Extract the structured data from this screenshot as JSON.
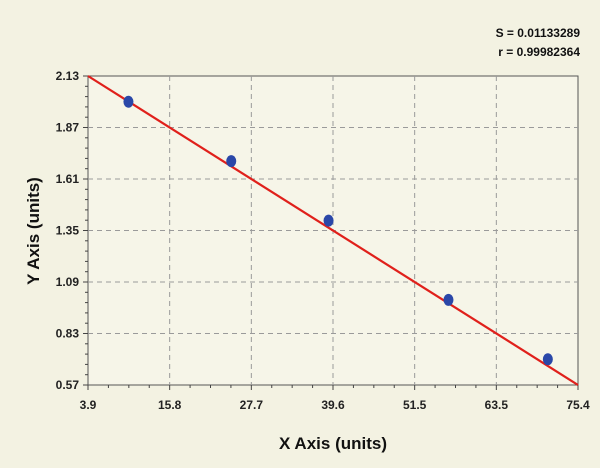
{
  "chart_data": {
    "type": "scatter",
    "xlabel": "X Axis (units)",
    "ylabel": "Y Axis (units)",
    "xlim": [
      3.9,
      75.4
    ],
    "ylim": [
      0.57,
      2.13
    ],
    "x_ticks": [
      "3.9",
      "15.8",
      "27.7",
      "39.6",
      "51.5",
      "63.5",
      "75.4"
    ],
    "y_ticks": [
      "0.57",
      "0.83",
      "1.09",
      "1.35",
      "1.61",
      "1.87",
      "2.13"
    ],
    "grid": true,
    "stats": {
      "s_label": "S = 0.01133289",
      "r_label": "r = 0.99982364"
    },
    "series": [
      {
        "points": [
          {
            "x": 9.8,
            "y": 2.0
          },
          {
            "x": 24.8,
            "y": 1.7
          },
          {
            "x": 39.0,
            "y": 1.4
          },
          {
            "x": 56.5,
            "y": 1.0
          },
          {
            "x": 71.0,
            "y": 0.7
          }
        ],
        "color": "#2a47a8"
      }
    ],
    "fit_line": {
      "points": [
        {
          "x": 3.9,
          "y": 2.13
        },
        {
          "x": 75.4,
          "y": 0.57
        }
      ],
      "color": "#e0201b"
    }
  }
}
